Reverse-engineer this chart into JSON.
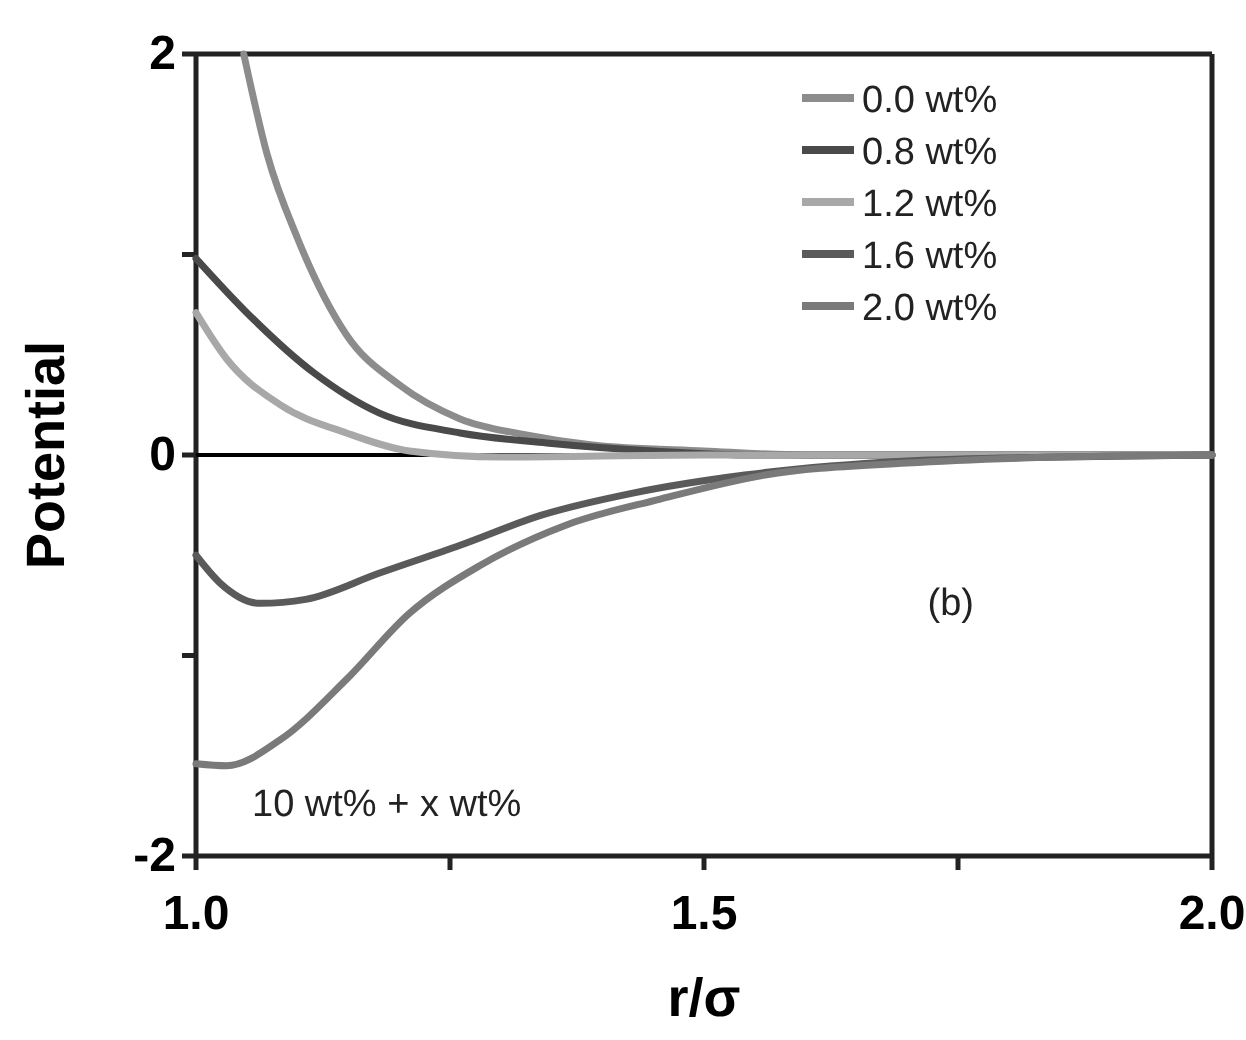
{
  "chart_data": {
    "type": "line",
    "xlabel": "r/σ",
    "ylabel": "Potential",
    "xlim": [
      1.0,
      2.0
    ],
    "ylim": [
      -2,
      2
    ],
    "xticks": [
      {
        "value": 1.0,
        "label": "1.0"
      },
      {
        "value": 1.25,
        "label": null
      },
      {
        "value": 1.5,
        "label": "1.5"
      },
      {
        "value": 1.75,
        "label": null
      },
      {
        "value": 2.0,
        "label": "2.0"
      }
    ],
    "yticks": [
      {
        "value": -2,
        "label": "-2"
      },
      {
        "value": -1,
        "label": null
      },
      0,
      {
        "value": 1,
        "label": null
      },
      2
    ],
    "grid": false,
    "legend": "top right",
    "marker": "none",
    "line_style": "solid",
    "ref_lines": [
      {
        "axis": "y",
        "value": 0,
        "color": "#000000"
      }
    ],
    "annotations": [
      "(b)",
      "10 wt% + x wt%"
    ],
    "series": [
      {
        "name": "0.0 wt%",
        "color": "#8c8c8c",
        "x": [
          1.047,
          1.07,
          1.1,
          1.148,
          1.2,
          1.26,
          1.325,
          1.39,
          1.5,
          1.6,
          1.8,
          2.0
        ],
        "values": [
          2,
          1.5,
          1.08,
          0.6,
          0.35,
          0.18,
          0.1,
          0.05,
          0.02,
          0.0,
          0.0,
          0.0
        ]
      },
      {
        "name": "0.8 wt%",
        "color": "#4a4a4a",
        "x": [
          1.0,
          1.05,
          1.116,
          1.18,
          1.26,
          1.345,
          1.45,
          1.55,
          1.8,
          2.0
        ],
        "values": [
          0.98,
          0.71,
          0.41,
          0.21,
          0.11,
          0.06,
          0.02,
          0.0,
          0.0,
          0.0
        ]
      },
      {
        "name": "1.2 wt%",
        "color": "#a8a8a8",
        "x": [
          1.0,
          1.03,
          1.083,
          1.148,
          1.21,
          1.3,
          1.5,
          1.8,
          2.0
        ],
        "values": [
          0.71,
          0.48,
          0.25,
          0.11,
          0.02,
          -0.01,
          0.0,
          0.0,
          0.0
        ]
      },
      {
        "name": "1.6 wt%",
        "color": "#5a5a5a",
        "x": [
          1.0,
          1.024,
          1.063,
          1.108,
          1.18,
          1.26,
          1.34,
          1.43,
          1.54,
          1.7,
          1.85,
          2.0
        ],
        "values": [
          -0.5,
          -0.64,
          -0.74,
          -0.72,
          -0.59,
          -0.45,
          -0.3,
          -0.19,
          -0.1,
          -0.03,
          -0.01,
          0.0
        ]
      },
      {
        "name": "2.0 wt%",
        "color": "#7a7a7a",
        "x": [
          1.0,
          1.03,
          1.083,
          1.148,
          1.21,
          1.28,
          1.364,
          1.457,
          1.56,
          1.7,
          1.85,
          2.0
        ],
        "values": [
          -1.54,
          -1.55,
          -1.42,
          -1.12,
          -0.79,
          -0.55,
          -0.35,
          -0.22,
          -0.1,
          -0.04,
          -0.01,
          0.0
        ]
      }
    ]
  }
}
